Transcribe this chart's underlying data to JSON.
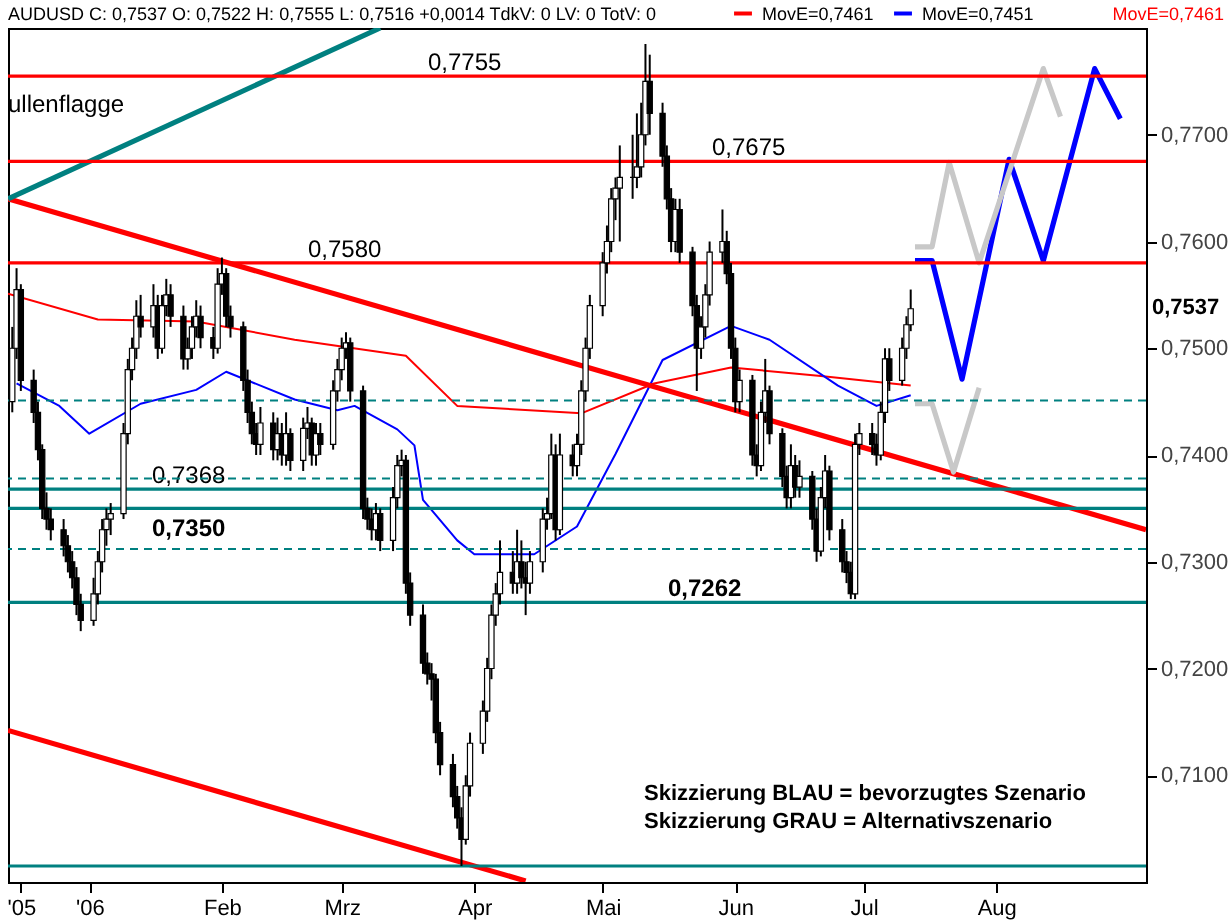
{
  "chart_data": {
    "type": "candlestick",
    "title": "AUDUSD C: 0,7537 O: 0,7522 H: 0,7555 L: 0,7516 +0,0014 TdkV: 0 LV: 0 TotV: 0",
    "x": [
      "2005-12-14",
      "2005-12-15",
      "2005-12-16",
      "2005-12-19",
      "2005-12-20",
      "2005-12-21",
      "2005-12-22",
      "2005-12-23",
      "2005-12-26",
      "2005-12-27",
      "2005-12-28",
      "2005-12-29",
      "2005-12-30",
      "2006-01-02",
      "2006-01-03",
      "2006-01-04",
      "2006-01-05",
      "2006-01-06",
      "2006-01-09",
      "2006-01-10",
      "2006-01-11",
      "2006-01-12",
      "2006-01-13",
      "2006-01-16",
      "2006-01-17",
      "2006-01-18",
      "2006-01-19",
      "2006-01-20",
      "2006-01-23",
      "2006-01-24",
      "2006-01-25",
      "2006-01-26",
      "2006-01-27",
      "2006-01-30",
      "2006-01-31",
      "2006-02-01",
      "2006-02-02",
      "2006-02-03",
      "2006-02-06",
      "2006-02-07",
      "2006-02-08",
      "2006-02-09",
      "2006-02-10",
      "2006-02-13",
      "2006-02-14",
      "2006-02-15",
      "2006-02-16",
      "2006-02-17",
      "2006-02-20",
      "2006-02-21",
      "2006-02-22",
      "2006-02-23",
      "2006-02-24",
      "2006-02-27",
      "2006-02-28",
      "2006-03-01",
      "2006-03-02",
      "2006-03-03",
      "2006-03-06",
      "2006-03-07",
      "2006-03-08",
      "2006-03-09",
      "2006-03-10",
      "2006-03-13",
      "2006-03-14",
      "2006-03-15",
      "2006-03-16",
      "2006-03-17",
      "2006-03-20",
      "2006-03-21",
      "2006-03-22",
      "2006-03-23",
      "2006-03-24",
      "2006-03-27",
      "2006-03-28",
      "2006-03-29",
      "2006-03-30",
      "2006-03-31",
      "2006-04-03",
      "2006-04-04",
      "2006-04-05",
      "2006-04-06",
      "2006-04-07",
      "2006-04-10",
      "2006-04-11",
      "2006-04-12",
      "2006-04-13",
      "2006-04-14",
      "2006-04-17",
      "2006-04-18",
      "2006-04-19",
      "2006-04-20",
      "2006-04-21",
      "2006-04-24",
      "2006-04-25",
      "2006-04-26",
      "2006-04-27",
      "2006-04-28",
      "2006-05-01",
      "2006-05-02",
      "2006-05-03",
      "2006-05-04",
      "2006-05-05",
      "2006-05-08",
      "2006-05-09",
      "2006-05-10",
      "2006-05-11",
      "2006-05-12",
      "2006-05-15",
      "2006-05-16",
      "2006-05-17",
      "2006-05-18",
      "2006-05-19",
      "2006-05-22",
      "2006-05-23",
      "2006-05-24",
      "2006-05-25",
      "2006-05-26",
      "2006-05-29",
      "2006-05-30",
      "2006-05-31",
      "2006-06-01",
      "2006-06-02",
      "2006-06-05",
      "2006-06-06",
      "2006-06-07",
      "2006-06-08",
      "2006-06-09",
      "2006-06-12",
      "2006-06-13",
      "2006-06-14",
      "2006-06-15",
      "2006-06-16",
      "2006-06-19",
      "2006-06-20",
      "2006-06-21",
      "2006-06-22",
      "2006-06-23",
      "2006-06-26",
      "2006-06-27",
      "2006-06-28",
      "2006-06-29",
      "2006-06-30",
      "2006-07-03",
      "2006-07-04",
      "2006-07-05",
      "2006-07-06",
      "2006-07-07",
      "2006-07-10",
      "2006-07-11",
      "2006-07-12"
    ],
    "ohlc": [
      [
        0.745,
        0.752,
        0.744,
        0.75
      ],
      [
        0.75,
        0.7575,
        0.749,
        0.7555
      ],
      [
        0.7555,
        0.756,
        0.746,
        0.747
      ],
      [
        0.747,
        0.748,
        0.743,
        0.744
      ],
      [
        0.744,
        0.745,
        0.7395,
        0.7405
      ],
      [
        0.7405,
        0.741,
        0.734,
        0.735
      ],
      [
        0.735,
        0.7365,
        0.733,
        0.734
      ],
      [
        0.734,
        0.735,
        0.732,
        0.733
      ],
      [
        0.733,
        0.734,
        0.7305,
        0.7315
      ],
      [
        0.7315,
        0.7325,
        0.729,
        0.73
      ],
      [
        0.73,
        0.731,
        0.7275,
        0.7285
      ],
      [
        0.7285,
        0.7295,
        0.725,
        0.726
      ],
      [
        0.726,
        0.727,
        0.7235,
        0.7245
      ],
      [
        0.7245,
        0.7285,
        0.724,
        0.727
      ],
      [
        0.727,
        0.731,
        0.726,
        0.73
      ],
      [
        0.73,
        0.734,
        0.729,
        0.733
      ],
      [
        0.733,
        0.735,
        0.7315,
        0.734
      ],
      [
        0.734,
        0.7355,
        0.7325,
        0.7345
      ],
      [
        0.7345,
        0.743,
        0.734,
        0.742
      ],
      [
        0.742,
        0.749,
        0.741,
        0.748
      ],
      [
        0.748,
        0.751,
        0.747,
        0.75
      ],
      [
        0.75,
        0.7545,
        0.749,
        0.753
      ],
      [
        0.753,
        0.755,
        0.751,
        0.752
      ],
      [
        0.752,
        0.756,
        0.751,
        0.754
      ],
      [
        0.754,
        0.755,
        0.749,
        0.75
      ],
      [
        0.75,
        0.755,
        0.7495,
        0.754
      ],
      [
        0.754,
        0.7565,
        0.753,
        0.755
      ],
      [
        0.755,
        0.756,
        0.752,
        0.753
      ],
      [
        0.753,
        0.754,
        0.748,
        0.749
      ],
      [
        0.749,
        0.751,
        0.748,
        0.75
      ],
      [
        0.75,
        0.753,
        0.749,
        0.752
      ],
      [
        0.752,
        0.7545,
        0.751,
        0.753
      ],
      [
        0.753,
        0.754,
        0.75,
        0.751
      ],
      [
        0.751,
        0.752,
        0.749,
        0.75
      ],
      [
        0.75,
        0.7575,
        0.7495,
        0.756
      ],
      [
        0.756,
        0.7585,
        0.755,
        0.757
      ],
      [
        0.757,
        0.7575,
        0.752,
        0.753
      ],
      [
        0.753,
        0.754,
        0.751,
        0.752
      ],
      [
        0.752,
        0.7525,
        0.746,
        0.747
      ],
      [
        0.747,
        0.748,
        0.743,
        0.744
      ],
      [
        0.744,
        0.745,
        0.741,
        0.742
      ],
      [
        0.742,
        0.743,
        0.74,
        0.741
      ],
      [
        0.741,
        0.7445,
        0.74,
        0.743
      ],
      [
        0.743,
        0.744,
        0.7395,
        0.7405
      ],
      [
        0.7405,
        0.7435,
        0.7395,
        0.742
      ],
      [
        0.742,
        0.743,
        0.739,
        0.74
      ],
      [
        0.74,
        0.744,
        0.739,
        0.742
      ],
      [
        0.742,
        0.7425,
        0.7385,
        0.7395
      ],
      [
        0.7395,
        0.7435,
        0.7385,
        0.7425
      ],
      [
        0.7425,
        0.7445,
        0.7415,
        0.743
      ],
      [
        0.743,
        0.7435,
        0.739,
        0.74
      ],
      [
        0.74,
        0.743,
        0.739,
        0.742
      ],
      [
        0.742,
        0.743,
        0.74,
        0.741
      ],
      [
        0.741,
        0.747,
        0.7405,
        0.746
      ],
      [
        0.746,
        0.749,
        0.745,
        0.748
      ],
      [
        0.748,
        0.751,
        0.747,
        0.75
      ],
      [
        0.75,
        0.7515,
        0.749,
        0.7505
      ],
      [
        0.7505,
        0.751,
        0.745,
        0.746
      ],
      [
        0.746,
        0.7465,
        0.734,
        0.735
      ],
      [
        0.735,
        0.736,
        0.733,
        0.734
      ],
      [
        0.734,
        0.735,
        0.732,
        0.733
      ],
      [
        0.733,
        0.7355,
        0.732,
        0.7345
      ],
      [
        0.7345,
        0.735,
        0.731,
        0.732
      ],
      [
        0.732,
        0.737,
        0.731,
        0.736
      ],
      [
        0.736,
        0.74,
        0.735,
        0.739
      ],
      [
        0.739,
        0.7405,
        0.738,
        0.7395
      ],
      [
        0.7395,
        0.74,
        0.727,
        0.728
      ],
      [
        0.728,
        0.729,
        0.724,
        0.725
      ],
      [
        0.725,
        0.726,
        0.7195,
        0.7205
      ],
      [
        0.7205,
        0.7215,
        0.7185,
        0.7195
      ],
      [
        0.7195,
        0.7205,
        0.717,
        0.719
      ],
      [
        0.719,
        0.7195,
        0.713,
        0.714
      ],
      [
        0.714,
        0.715,
        0.71,
        0.711
      ],
      [
        0.711,
        0.712,
        0.707,
        0.708
      ],
      [
        0.708,
        0.709,
        0.705,
        0.706
      ],
      [
        0.706,
        0.707,
        0.7015,
        0.704
      ],
      [
        0.704,
        0.71,
        0.7035,
        0.709
      ],
      [
        0.709,
        0.714,
        0.708,
        0.713
      ],
      [
        0.713,
        0.717,
        0.712,
        0.716
      ],
      [
        0.716,
        0.721,
        0.715,
        0.72
      ],
      [
        0.72,
        0.726,
        0.719,
        0.725
      ],
      [
        0.725,
        0.728,
        0.724,
        0.727
      ],
      [
        0.727,
        0.732,
        0.726,
        0.729
      ],
      [
        0.729,
        0.731,
        0.727,
        0.728
      ],
      [
        0.728,
        0.733,
        0.727,
        0.73
      ],
      [
        0.73,
        0.732,
        0.7275,
        0.7285
      ],
      [
        0.7285,
        0.73,
        0.725,
        0.728
      ],
      [
        0.728,
        0.731,
        0.727,
        0.73
      ],
      [
        0.73,
        0.735,
        0.729,
        0.734
      ],
      [
        0.734,
        0.736,
        0.733,
        0.7345
      ],
      [
        0.7345,
        0.742,
        0.734,
        0.74
      ],
      [
        0.74,
        0.741,
        0.732,
        0.733
      ],
      [
        0.733,
        0.742,
        0.7325,
        0.74
      ],
      [
        0.74,
        0.741,
        0.738,
        0.739
      ],
      [
        0.739,
        0.742,
        0.738,
        0.741
      ],
      [
        0.741,
        0.747,
        0.74,
        0.746
      ],
      [
        0.746,
        0.751,
        0.745,
        0.75
      ],
      [
        0.75,
        0.755,
        0.749,
        0.754
      ],
      [
        0.754,
        0.759,
        0.753,
        0.758
      ],
      [
        0.758,
        0.7615,
        0.757,
        0.76
      ],
      [
        0.76,
        0.765,
        0.759,
        0.764
      ],
      [
        0.764,
        0.766,
        0.762,
        0.765
      ],
      [
        0.765,
        0.769,
        0.76,
        0.766
      ],
      [
        0.766,
        0.77,
        0.764,
        0.766
      ],
      [
        0.766,
        0.772,
        0.765,
        0.767
      ],
      [
        0.767,
        0.773,
        0.766,
        0.77
      ],
      [
        0.77,
        0.7785,
        0.769,
        0.775
      ],
      [
        0.775,
        0.7775,
        0.77,
        0.772
      ],
      [
        0.772,
        0.773,
        0.767,
        0.768
      ],
      [
        0.768,
        0.769,
        0.763,
        0.764
      ],
      [
        0.764,
        0.765,
        0.759,
        0.76
      ],
      [
        0.76,
        0.764,
        0.759,
        0.763
      ],
      [
        0.763,
        0.764,
        0.758,
        0.759
      ],
      [
        0.759,
        0.7595,
        0.753,
        0.754
      ],
      [
        0.754,
        0.755,
        0.746,
        0.75
      ],
      [
        0.75,
        0.753,
        0.749,
        0.752
      ],
      [
        0.752,
        0.756,
        0.751,
        0.755
      ],
      [
        0.755,
        0.76,
        0.754,
        0.759
      ],
      [
        0.759,
        0.763,
        0.758,
        0.76
      ],
      [
        0.76,
        0.761,
        0.756,
        0.757
      ],
      [
        0.757,
        0.758,
        0.749,
        0.75
      ],
      [
        0.75,
        0.751,
        0.744,
        0.745
      ],
      [
        0.745,
        0.748,
        0.744,
        0.747
      ],
      [
        0.747,
        0.7475,
        0.739,
        0.74
      ],
      [
        0.74,
        0.741,
        0.738,
        0.739
      ],
      [
        0.739,
        0.745,
        0.7385,
        0.744
      ],
      [
        0.744,
        0.749,
        0.743,
        0.746
      ],
      [
        0.746,
        0.7465,
        0.741,
        0.742
      ],
      [
        0.742,
        0.7425,
        0.737,
        0.738
      ],
      [
        0.738,
        0.739,
        0.735,
        0.736
      ],
      [
        0.736,
        0.741,
        0.735,
        0.739
      ],
      [
        0.739,
        0.74,
        0.736,
        0.737
      ],
      [
        0.737,
        0.7395,
        0.736,
        0.738
      ],
      [
        0.738,
        0.7385,
        0.733,
        0.734
      ],
      [
        0.734,
        0.735,
        0.73,
        0.731
      ],
      [
        0.731,
        0.737,
        0.7305,
        0.736
      ],
      [
        0.736,
        0.74,
        0.735,
        0.7385
      ],
      [
        0.7385,
        0.739,
        0.732,
        0.733
      ],
      [
        0.733,
        0.734,
        0.729,
        0.73
      ],
      [
        0.73,
        0.731,
        0.728,
        0.729
      ],
      [
        0.729,
        0.73,
        0.7265,
        0.727
      ],
      [
        0.727,
        0.742,
        0.7265,
        0.741
      ],
      [
        0.741,
        0.743,
        0.74,
        0.742
      ],
      [
        0.742,
        0.743,
        0.74,
        0.741
      ],
      [
        0.741,
        0.742,
        0.739,
        0.74
      ],
      [
        0.74,
        0.745,
        0.7395,
        0.744
      ],
      [
        0.744,
        0.75,
        0.743,
        0.749
      ],
      [
        0.749,
        0.75,
        0.746,
        0.747
      ],
      [
        0.747,
        0.751,
        0.7465,
        0.75
      ],
      [
        0.75,
        0.753,
        0.749,
        0.7522
      ],
      [
        0.7522,
        0.7555,
        0.7516,
        0.7537
      ]
    ],
    "series": [
      {
        "name": "MovE=0,7461",
        "color": "#ff0000",
        "type": "line",
        "x": [
          "2005-12-13",
          "2006-01-03",
          "2006-01-26",
          "2006-02-18",
          "2006-03-16",
          "2006-03-28",
          "2006-04-26",
          "2006-05-13",
          "2006-05-31",
          "2006-06-21",
          "2006-07-12"
        ],
        "values": [
          0.7551,
          0.7527,
          0.7525,
          0.7508,
          0.7493,
          0.7446,
          0.7439,
          0.7467,
          0.7482,
          0.7474,
          0.7465
        ]
      },
      {
        "name": "MovE=0,7451",
        "color": "#0000ff",
        "type": "line",
        "x": [
          "2005-12-15",
          "2005-12-25",
          "2006-01-01",
          "2006-01-13",
          "2006-01-26",
          "2006-02-02",
          "2006-02-18",
          "2006-02-28",
          "2006-03-04",
          "2006-03-14",
          "2006-03-18",
          "2006-03-20",
          "2006-03-28",
          "2006-04-01",
          "2006-04-15",
          "2006-04-25",
          "2006-05-04",
          "2006-05-15",
          "2006-05-31",
          "2006-06-09",
          "2006-06-25",
          "2006-07-04",
          "2006-07-12"
        ],
        "values": [
          0.7467,
          0.7446,
          0.742,
          0.7448,
          0.7461,
          0.7478,
          0.7452,
          0.7442,
          0.7446,
          0.7424,
          0.7409,
          0.7358,
          0.732,
          0.7307,
          0.7307,
          0.7333,
          0.7401,
          0.7489,
          0.7521,
          0.7508,
          0.7465,
          0.7446,
          0.7456
        ]
      },
      {
        "color": "#ff0000",
        "type": "line",
        "x": [
          "2005-12-13",
          "2006-09-05"
        ],
        "values": [
          0.764,
          0.733
        ]
      },
      {
        "color": "#ff0000",
        "type": "line",
        "x": [
          "2005-12-13",
          "2006-04-13"
        ],
        "values": [
          0.7142,
          0.7001
        ]
      },
      {
        "color": "#008080",
        "type": "line",
        "x": [
          "2005-12-13",
          "2006-03-10"
        ],
        "values": [
          0.764,
          0.78
        ]
      },
      {
        "color": "#0000ff",
        "type": "line",
        "x": [
          "2006-07-13",
          "2006-07-17",
          "2006-07-24",
          "2006-08-04",
          "2006-08-12",
          "2006-08-24",
          "2006-08-30"
        ],
        "values": [
          0.7582,
          0.7582,
          0.7471,
          0.7677,
          0.7582,
          0.7762,
          0.7715
        ]
      },
      {
        "color": "#c8c8c8",
        "type": "line",
        "x": [
          "2006-07-13",
          "2006-07-17",
          "2006-07-21",
          "2006-07-28",
          "2006-08-12",
          "2006-08-16"
        ],
        "values": [
          0.7595,
          0.7595,
          0.7674,
          0.758,
          0.7762,
          0.7717
        ]
      },
      {
        "color": "#c8c8c8",
        "type": "line",
        "x": [
          "2006-07-13",
          "2006-07-17",
          "2006-07-22",
          "2006-07-28"
        ],
        "values": [
          0.7448,
          0.7448,
          0.7384,
          0.7463
        ]
      }
    ],
    "ref_lines": [
      {
        "axis": "y",
        "value": 0.7755,
        "label": "0,7755",
        "color": "#ff0000"
      },
      {
        "axis": "y",
        "value": 0.7675,
        "label": "0,7675",
        "color": "#ff0000"
      },
      {
        "axis": "y",
        "value": 0.758,
        "label": "0,7580",
        "color": "#ff0000"
      },
      {
        "axis": "y",
        "value": 0.7368,
        "label": "0,7368",
        "color": "#008080"
      },
      {
        "axis": "y",
        "value": 0.735,
        "label": "0,7350",
        "color": "#008080"
      },
      {
        "axis": "y",
        "value": 0.7262,
        "label": "0,7262",
        "color": "#008080"
      },
      {
        "axis": "y",
        "value": 0.7451,
        "color": "#008080",
        "line_style": "dashed"
      },
      {
        "axis": "y",
        "value": 0.7378,
        "color": "#008080",
        "line_style": "dashed"
      },
      {
        "axis": "y",
        "value": 0.7312,
        "color": "#008080",
        "line_style": "dashed"
      },
      {
        "axis": "y",
        "value": 0.7015,
        "color": "#008080"
      }
    ],
    "annotations": [
      "ullenflagge",
      "MovE=0,7461",
      "Skizzierung BLAU = bevorzugtes Szenario",
      "Skizzierung GRAU = Alternativszenario",
      "0,7537"
    ],
    "xlim": [
      "2005-12-13",
      "2006-09-05"
    ],
    "xticks": [
      {
        "value": "2005-12-16",
        "label": "'05"
      },
      {
        "value": "2006-01-01",
        "label": "'06"
      },
      {
        "value": "2006-02-01",
        "label": "Feb"
      },
      {
        "value": "2006-03-01",
        "label": "Mrz"
      },
      {
        "value": "2006-04-01",
        "label": "Apr"
      },
      {
        "value": "2006-05-01",
        "label": "Mai"
      },
      {
        "value": "2006-06-01",
        "label": "Jun"
      },
      {
        "value": "2006-07-01",
        "label": "Jul"
      },
      {
        "value": "2006-08-01",
        "label": "Aug"
      }
    ],
    "ylim": [
      0.7,
      0.78
    ],
    "yticks": [
      {
        "value": 0.71,
        "label": "0,7100"
      },
      {
        "value": 0.72,
        "label": "0,7200"
      },
      {
        "value": 0.73,
        "label": "0,7300"
      },
      {
        "value": 0.74,
        "label": "0,7400"
      },
      {
        "value": 0.75,
        "label": "0,7500"
      },
      {
        "value": 0.76,
        "label": "0,7600"
      },
      {
        "value": 0.77,
        "label": "0,7700"
      }
    ],
    "grid": false,
    "legend": "top"
  }
}
